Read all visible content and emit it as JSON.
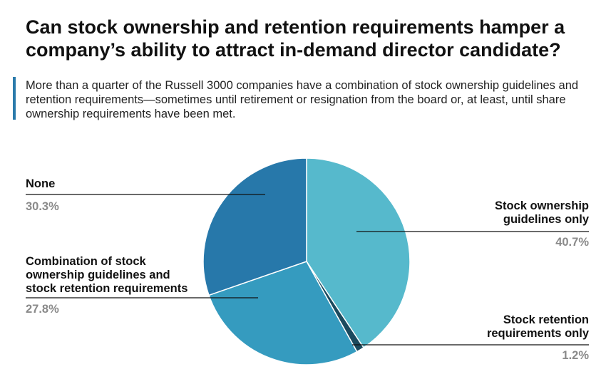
{
  "title": "Can stock ownership and retention requirements hamper a company’s ability to attract in-demand director candidate?",
  "subtitle": "More than a quarter of the Russell 3000 companies have a combination of stock ownership guidelines and retention requirements—sometimes until retirement or resignation from the board or, at least, until share ownership requirements have been met.",
  "colors": {
    "accent_bar": "#2a7aab",
    "value_text": "#8a8a8a"
  },
  "chart_data": {
    "type": "pie",
    "title": "",
    "slices": [
      {
        "label": "Stock ownership guidelines only",
        "value": 40.7,
        "value_label": "40.7%",
        "color": "#56b9cc"
      },
      {
        "label": "Stock retention requirements only",
        "value": 1.2,
        "value_label": "1.2%",
        "color": "#1b4a5e"
      },
      {
        "label": "Combination of stock ownership guidelines and stock retention requirements",
        "value": 27.8,
        "value_label": "27.8%",
        "color": "#359bbf"
      },
      {
        "label": "None",
        "value": 30.3,
        "value_label": "30.3%",
        "color": "#2778aa"
      }
    ],
    "start": "12 o'clock",
    "direction": "clockwise",
    "legend": "none (labels with leader lines)"
  }
}
